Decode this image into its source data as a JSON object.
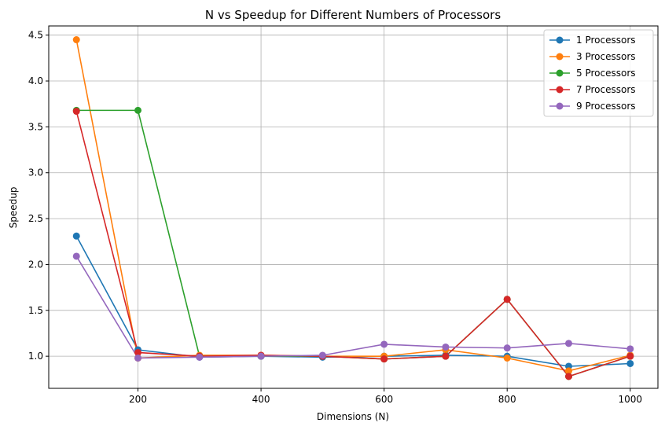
{
  "chart_data": {
    "type": "line",
    "title": "N vs Speedup for Different Numbers of Processors",
    "xlabel": "Dimensions (N)",
    "ylabel": "Speedup",
    "x": [
      100,
      200,
      300,
      400,
      500,
      600,
      700,
      800,
      900,
      1000
    ],
    "xlim": [
      55,
      1045
    ],
    "ylim": [
      0.65,
      4.6
    ],
    "x_ticks": [
      200,
      400,
      600,
      800,
      1000
    ],
    "y_ticks": [
      1.0,
      1.5,
      2.0,
      2.5,
      3.0,
      3.5,
      4.0,
      4.5
    ],
    "x_tick_labels": [
      "200",
      "400",
      "600",
      "800",
      "1000"
    ],
    "y_tick_labels": [
      "1.0",
      "1.5",
      "2.0",
      "2.5",
      "3.0",
      "3.5",
      "4.0",
      "4.5"
    ],
    "grid": true,
    "legend_position": "top-right",
    "series": [
      {
        "name": "1 Processors",
        "color": "#1f77b4",
        "values": [
          2.31,
          1.07,
          0.99,
          1.0,
          0.99,
          1.0,
          1.01,
          1.0,
          0.89,
          0.92
        ]
      },
      {
        "name": "3 Processors",
        "color": "#ff7f0e",
        "values": [
          4.45,
          0.98,
          1.01,
          1.01,
          1.0,
          1.0,
          1.07,
          0.98,
          0.84,
          1.01
        ]
      },
      {
        "name": "5 Processors",
        "color": "#2ca02c",
        "values": [
          3.68,
          3.68,
          1.0,
          1.0,
          1.0,
          0.97,
          1.0,
          1.62,
          0.78,
          1.0
        ]
      },
      {
        "name": "7 Processors",
        "color": "#d62728",
        "values": [
          3.67,
          1.04,
          1.0,
          1.01,
          1.0,
          0.97,
          1.0,
          1.62,
          0.78,
          1.0
        ]
      },
      {
        "name": "9 Processors",
        "color": "#9467bd",
        "values": [
          2.09,
          0.98,
          0.99,
          1.0,
          1.01,
          1.13,
          1.1,
          1.09,
          1.14,
          1.08
        ]
      }
    ]
  }
}
